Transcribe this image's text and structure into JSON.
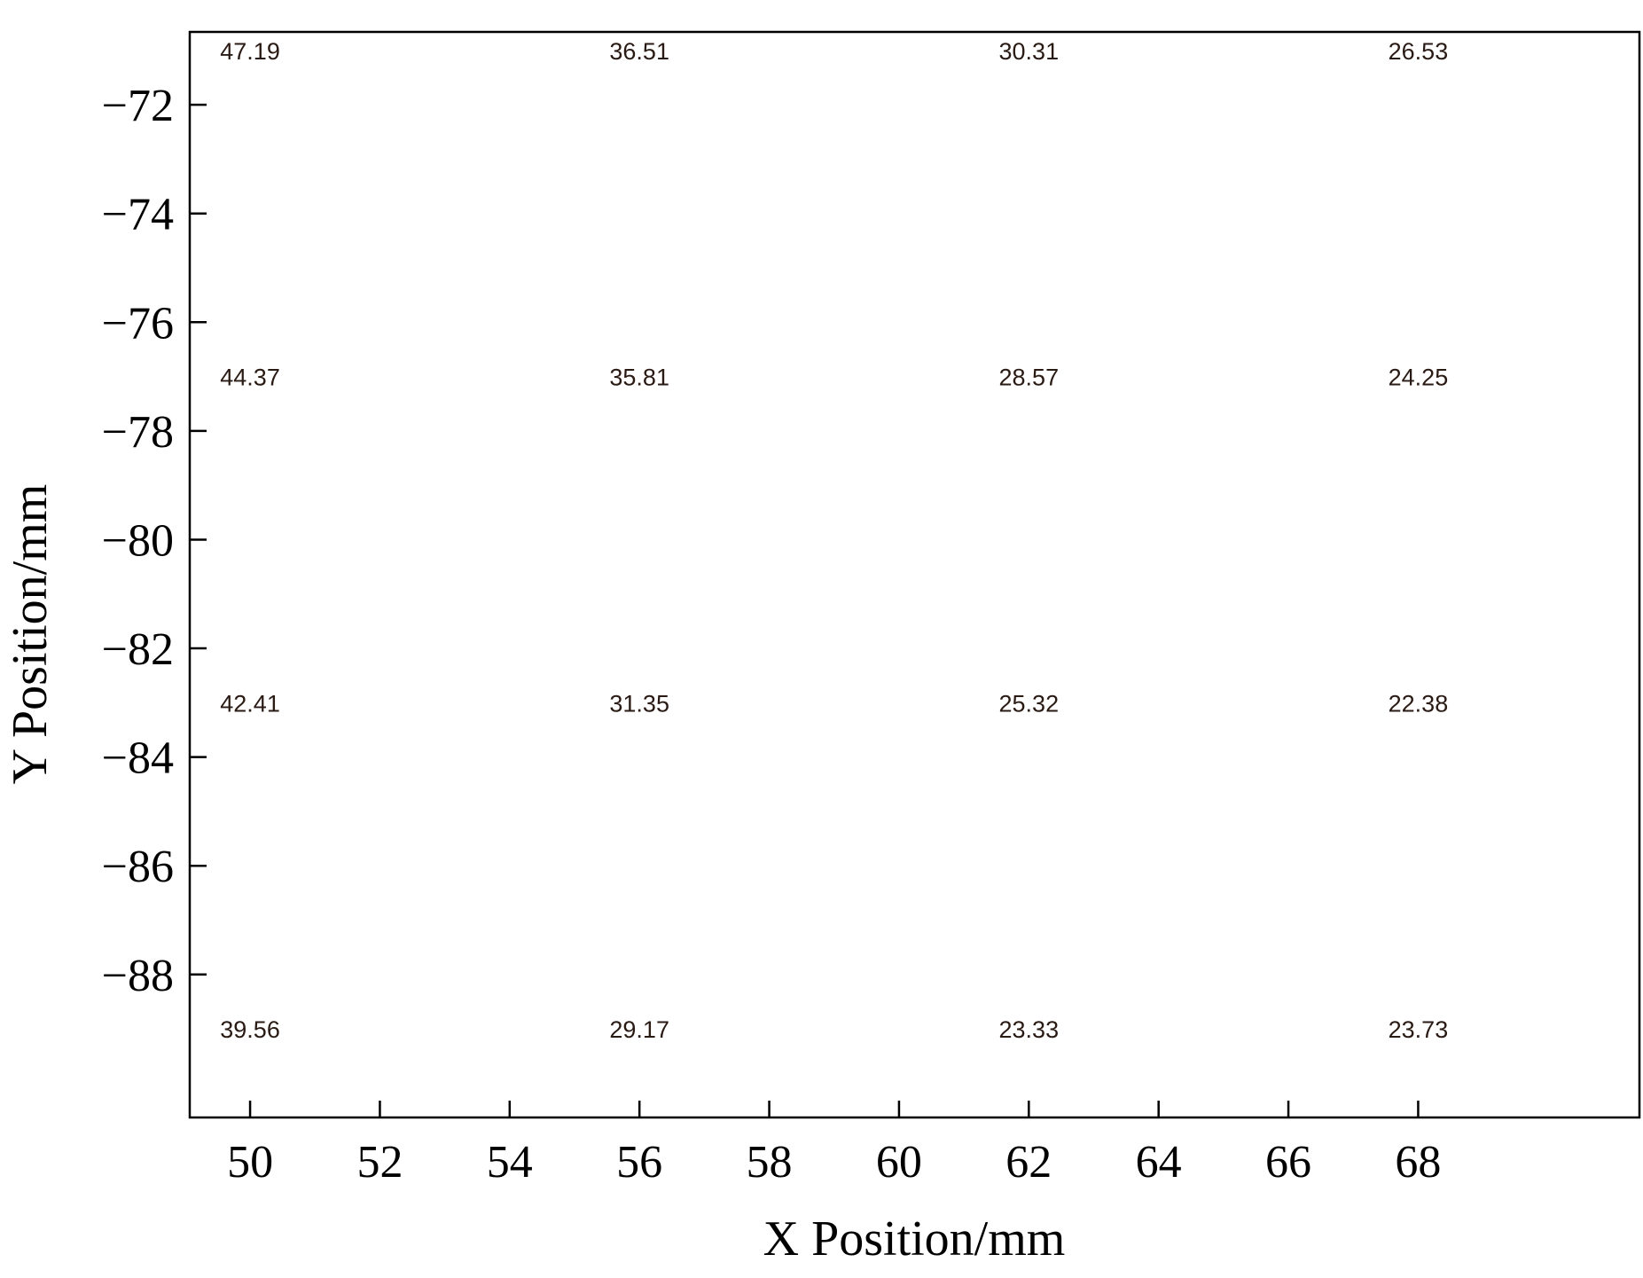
{
  "chart_data": {
    "type": "scatter",
    "title": "",
    "xlabel": "X Position/mm",
    "ylabel": "Y Position/mm",
    "xlim": [
      49.07,
      71.41
    ],
    "ylim": [
      -90.63,
      -70.66
    ],
    "xticks": [
      50,
      52,
      54,
      56,
      58,
      60,
      62,
      64,
      66,
      68
    ],
    "xtick_labels": [
      "50",
      "52",
      "54",
      "56",
      "58",
      "60",
      "62",
      "64",
      "66",
      "68"
    ],
    "yticks": [
      -72,
      -74,
      -76,
      -78,
      -80,
      -82,
      -84,
      -86,
      -88
    ],
    "ytick_labels": [
      "−72",
      "−74",
      "−76",
      "−78",
      "−80",
      "−82",
      "−84",
      "−86",
      "−88"
    ],
    "grid": false,
    "points": [
      {
        "x": 50,
        "y": -71,
        "label": "47.19"
      },
      {
        "x": 56,
        "y": -71,
        "label": "36.51"
      },
      {
        "x": 62,
        "y": -71,
        "label": "30.31"
      },
      {
        "x": 68,
        "y": -71,
        "label": "26.53"
      },
      {
        "x": 50,
        "y": -77,
        "label": "44.37"
      },
      {
        "x": 56,
        "y": -77,
        "label": "35.81"
      },
      {
        "x": 62,
        "y": -77,
        "label": "28.57"
      },
      {
        "x": 68,
        "y": -77,
        "label": "24.25"
      },
      {
        "x": 50,
        "y": -83,
        "label": "42.41"
      },
      {
        "x": 56,
        "y": -83,
        "label": "31.35"
      },
      {
        "x": 62,
        "y": -83,
        "label": "25.32"
      },
      {
        "x": 68,
        "y": -83,
        "label": "22.38"
      },
      {
        "x": 50,
        "y": -89,
        "label": "39.56"
      },
      {
        "x": 56,
        "y": -89,
        "label": "29.17"
      },
      {
        "x": 62,
        "y": -89,
        "label": "23.33"
      },
      {
        "x": 68,
        "y": -89,
        "label": "23.73"
      }
    ]
  }
}
